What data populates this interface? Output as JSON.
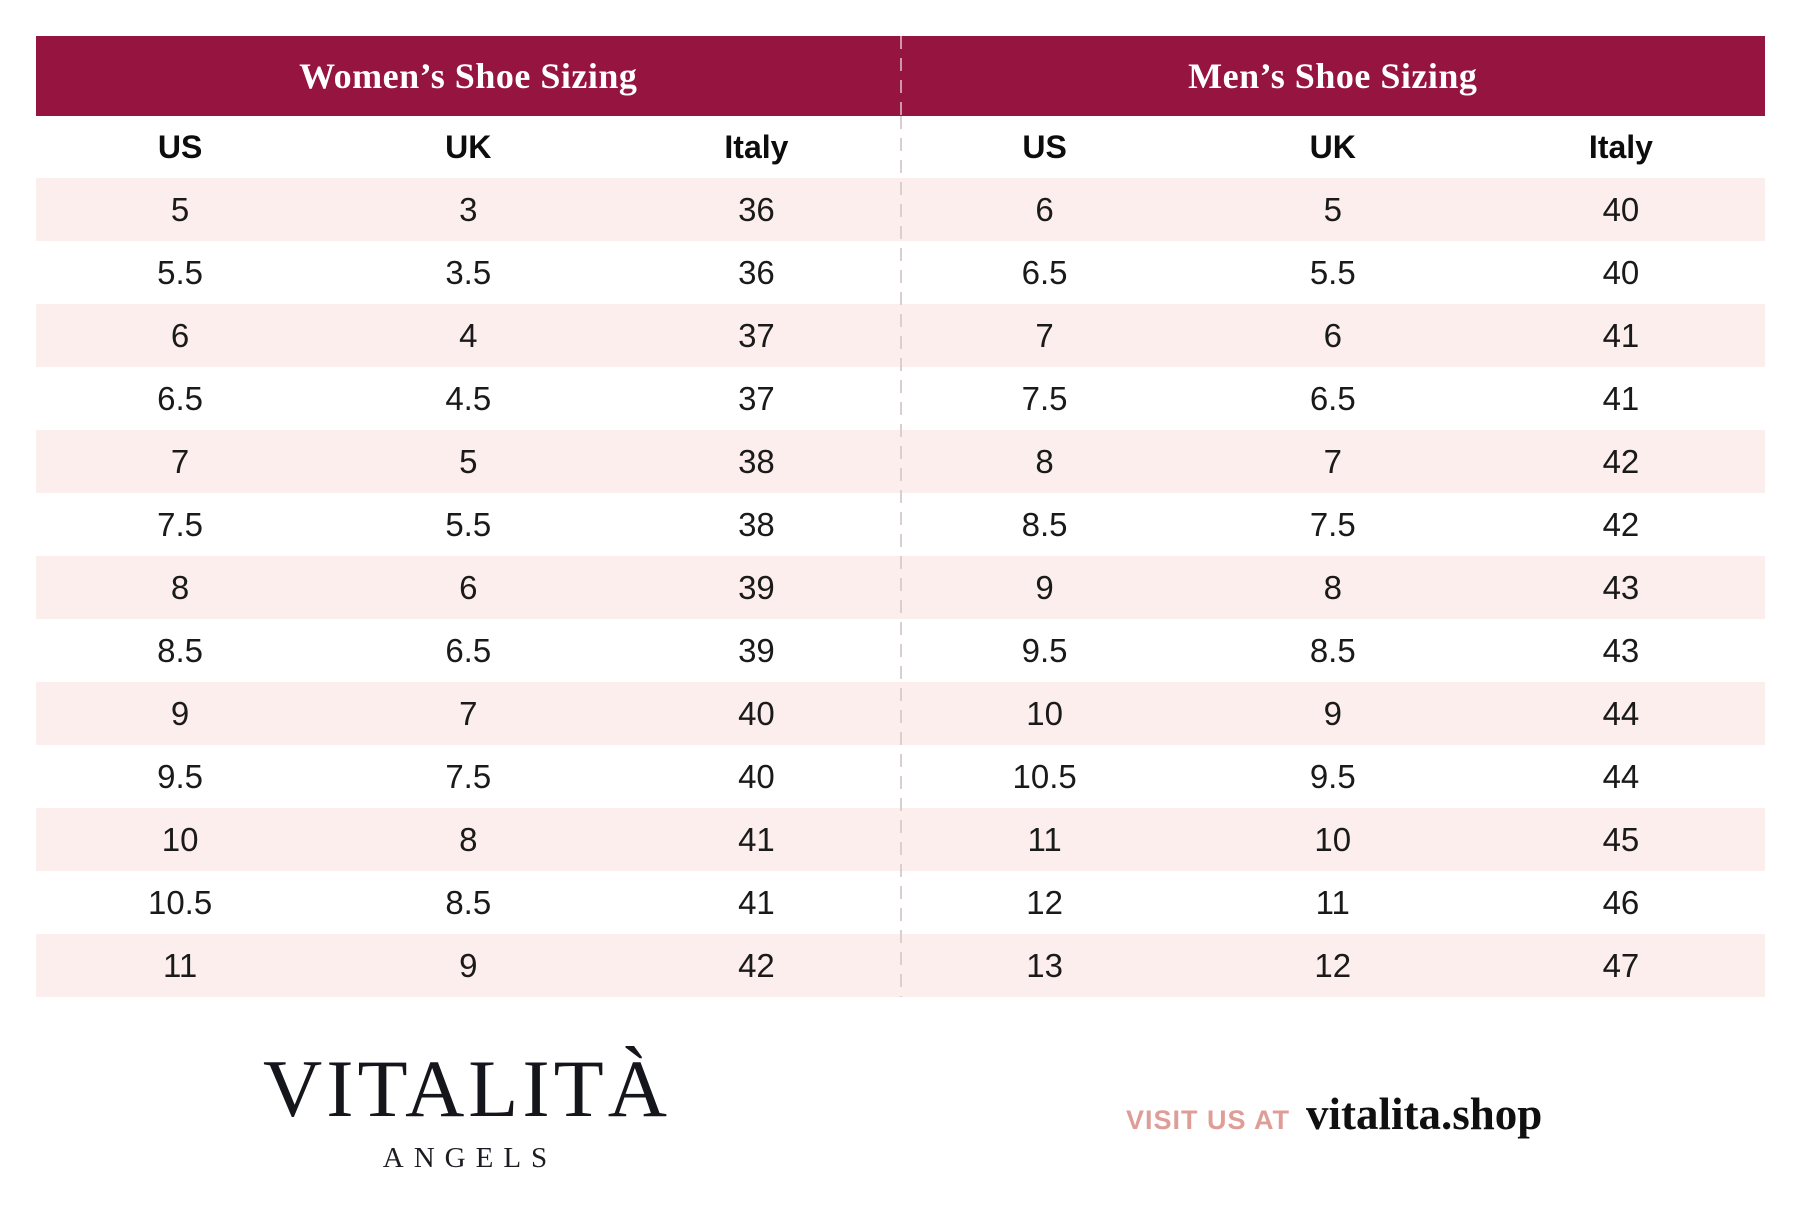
{
  "colors": {
    "accent": "#961440",
    "row_stripe": "#fbeeec",
    "divider": "#d9cfcf",
    "visit_label": "#df9d98",
    "text": "#1a1a1a"
  },
  "tables": {
    "women": {
      "title": "Women’s Shoe Sizing",
      "columns": [
        "US",
        "UK",
        "Italy"
      ],
      "rows": [
        [
          "5",
          "3",
          "36"
        ],
        [
          "5.5",
          "3.5",
          "36"
        ],
        [
          "6",
          "4",
          "37"
        ],
        [
          "6.5",
          "4.5",
          "37"
        ],
        [
          "7",
          "5",
          "38"
        ],
        [
          "7.5",
          "5.5",
          "38"
        ],
        [
          "8",
          "6",
          "39"
        ],
        [
          "8.5",
          "6.5",
          "39"
        ],
        [
          "9",
          "7",
          "40"
        ],
        [
          "9.5",
          "7.5",
          "40"
        ],
        [
          "10",
          "8",
          "41"
        ],
        [
          "10.5",
          "8.5",
          "41"
        ],
        [
          "11",
          "9",
          "42"
        ]
      ]
    },
    "men": {
      "title": "Men’s Shoe Sizing",
      "columns": [
        "US",
        "UK",
        "Italy"
      ],
      "rows": [
        [
          "6",
          "5",
          "40"
        ],
        [
          "6.5",
          "5.5",
          "40"
        ],
        [
          "7",
          "6",
          "41"
        ],
        [
          "7.5",
          "6.5",
          "41"
        ],
        [
          "8",
          "7",
          "42"
        ],
        [
          "8.5",
          "7.5",
          "42"
        ],
        [
          "9",
          "8",
          "43"
        ],
        [
          "9.5",
          "8.5",
          "43"
        ],
        [
          "10",
          "9",
          "44"
        ],
        [
          "10.5",
          "9.5",
          "44"
        ],
        [
          "11",
          "10",
          "45"
        ],
        [
          "12",
          "11",
          "46"
        ],
        [
          "13",
          "12",
          "47"
        ]
      ]
    }
  },
  "footer": {
    "brand": "VITALITÀ",
    "brand_sub": "ANGELS",
    "visit_label": "VISIT US AT",
    "visit_url": "vitalita.shop"
  }
}
